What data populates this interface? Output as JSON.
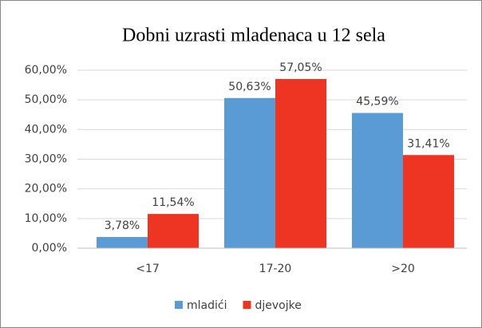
{
  "chart_data": {
    "type": "bar",
    "title": "Dobni uzrasti mladenaca u 12 sela",
    "categories": [
      "<17",
      "17-20",
      ">20"
    ],
    "series": [
      {
        "name": "mladići",
        "color": "#5b9bd5",
        "values": [
          3.78,
          50.63,
          45.59
        ],
        "value_labels": [
          "3,78%",
          "50,63%",
          "45,59%"
        ]
      },
      {
        "name": "djevojke",
        "color": "#ee3524",
        "values": [
          11.54,
          57.05,
          31.41
        ],
        "value_labels": [
          "11,54%",
          "57,05%",
          "31,41%"
        ]
      }
    ],
    "ylim": [
      0,
      60
    ],
    "yticks": [
      {
        "value": 0,
        "label": "0,00%"
      },
      {
        "value": 10,
        "label": "10,00%"
      },
      {
        "value": 20,
        "label": "20,00%"
      },
      {
        "value": 30,
        "label": "30,00%"
      },
      {
        "value": 40,
        "label": "40,00%"
      },
      {
        "value": 50,
        "label": "50,00%"
      },
      {
        "value": 60,
        "label": "60,00%"
      }
    ],
    "grid": true,
    "legend": "bottom"
  }
}
